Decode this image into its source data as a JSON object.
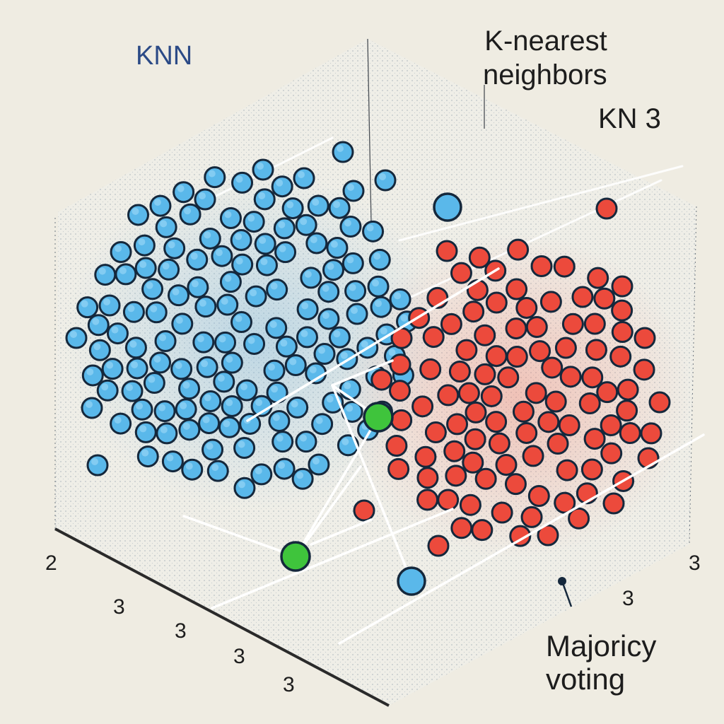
{
  "header": {
    "corner_label": "KNN",
    "title": "K-nearest",
    "title_line2": "neighbors",
    "subtitle": "KN 3"
  },
  "footer": {
    "line1": "Majoricy",
    "line2": "voting"
  },
  "axis_ticks": {
    "left": [
      "2",
      "3",
      "3",
      "3",
      "3"
    ],
    "right": [
      "3",
      "3"
    ]
  },
  "colors": {
    "background": "#efece2",
    "class_blue": "#5ab8ea",
    "class_red": "#ec4a3c",
    "query_point": "#3fc43c",
    "outline": "#15283c",
    "box_dots": "#9aa5ad"
  },
  "classes": [
    {
      "name": "blue",
      "color": "#5ab8ea"
    },
    {
      "name": "red",
      "color": "#ec4a3c"
    }
  ],
  "query_points": 2
}
